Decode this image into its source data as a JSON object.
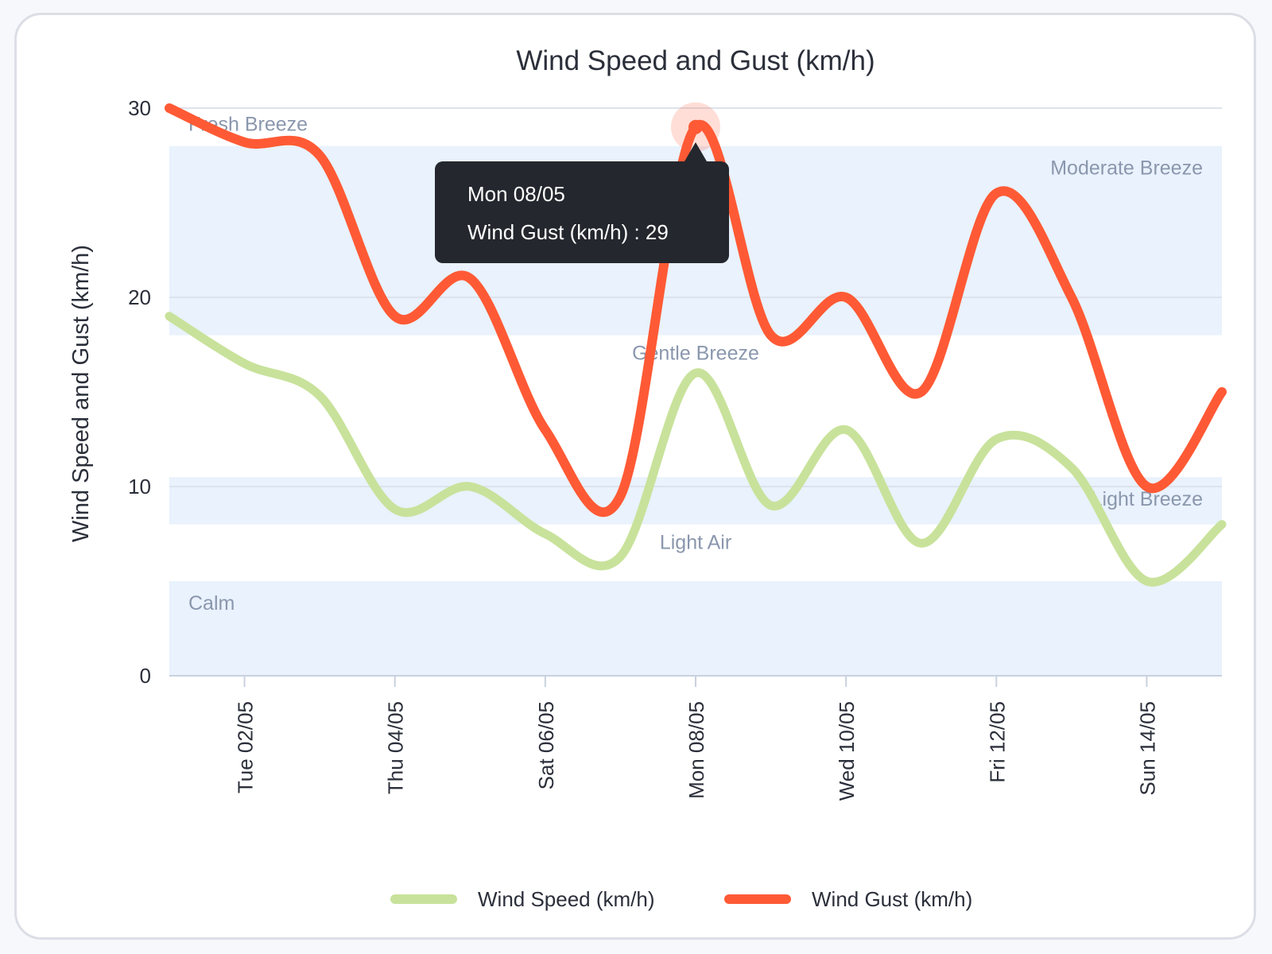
{
  "chart_data": {
    "type": "line",
    "title": "Wind Speed and Gust (km/h)",
    "ylabel": "Wind Speed and Gust (km/h)",
    "xlabel": "",
    "ylim": [
      0,
      30
    ],
    "yticks": [
      0,
      10,
      20,
      30
    ],
    "xlim": [
      0.5,
      14.5
    ],
    "x": [
      0.5,
      1.5,
      2.5,
      3.5,
      4.5,
      5.5,
      6.5,
      7.5,
      8.5,
      9.5,
      10.5,
      11.5,
      12.5,
      13.5,
      14.5
    ],
    "xticks": [
      {
        "x": 1.5,
        "label": "Tue 02/05"
      },
      {
        "x": 3.5,
        "label": "Thu 04/05"
      },
      {
        "x": 5.5,
        "label": "Sat 06/05"
      },
      {
        "x": 7.5,
        "label": "Mon 08/05"
      },
      {
        "x": 9.5,
        "label": "Wed 10/05"
      },
      {
        "x": 11.5,
        "label": "Fri 12/05"
      },
      {
        "x": 13.5,
        "label": "Sun 14/05"
      }
    ],
    "series": [
      {
        "name": "Wind Speed (km/h)",
        "color": "#c8e29b",
        "values": [
          19,
          16.5,
          14.8,
          8.8,
          10,
          7.5,
          6.3,
          16,
          9,
          13,
          7,
          12.5,
          11,
          5,
          8
        ]
      },
      {
        "name": "Wind Gust (km/h)",
        "color": "#ff5a35",
        "values": [
          30,
          28.2,
          27.5,
          19,
          21,
          13,
          9.5,
          29,
          18,
          20,
          15,
          25.5,
          20,
          10,
          15
        ]
      }
    ],
    "bands": [
      {
        "from": 0,
        "to": 5,
        "label": "Calm",
        "label_align": "left"
      },
      {
        "from": 8,
        "to": 10.5,
        "label": "Light Breeze",
        "label_align": "right"
      },
      {
        "from": 18,
        "to": 28,
        "label": "Moderate Breeze",
        "label_align": "right"
      }
    ],
    "band_labels": [
      {
        "text": "Light Air",
        "x": 7.5,
        "y": 6.7
      },
      {
        "text": "Gentle Breeze",
        "x": 7.5,
        "y": 16.7
      },
      {
        "text": "Fresh Breeze",
        "x": 1.0,
        "y": 28.8
      }
    ],
    "tooltip": {
      "title": "Mon 08/05",
      "series": "Wind Gust (km/h)",
      "value": 29,
      "line": "Wind Gust (km/h) : 29",
      "x": 7.5
    },
    "legend_position": "bottom",
    "grid": true,
    "band_color": "#e9f2fd"
  }
}
